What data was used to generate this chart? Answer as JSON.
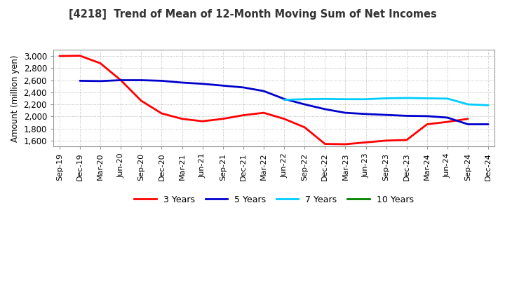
{
  "title": "[4218]  Trend of Mean of 12-Month Moving Sum of Net Incomes",
  "ylabel": "Amount (million yen)",
  "background_color": "#ffffff",
  "plot_bg_color": "#ffffff",
  "grid_color": "#999999",
  "ylim": [
    1500,
    3100
  ],
  "yticks": [
    1600,
    1800,
    2000,
    2200,
    2400,
    2600,
    2800,
    3000
  ],
  "x_labels": [
    "Sep-19",
    "Dec-19",
    "Mar-20",
    "Jun-20",
    "Sep-20",
    "Dec-20",
    "Mar-21",
    "Jun-21",
    "Sep-21",
    "Dec-21",
    "Mar-22",
    "Jun-22",
    "Sep-22",
    "Dec-22",
    "Mar-23",
    "Jun-23",
    "Sep-23",
    "Dec-23",
    "Mar-24",
    "Jun-24",
    "Sep-24",
    "Dec-24"
  ],
  "series": {
    "3 Years": {
      "color": "#ff0000",
      "data": [
        3000,
        3005,
        2880,
        2600,
        2260,
        2050,
        1960,
        1920,
        1960,
        2020,
        2060,
        1960,
        1820,
        1545,
        1540,
        1570,
        1600,
        1610,
        1870,
        1910,
        1960,
        null
      ]
    },
    "5 Years": {
      "color": "#0000cc",
      "data": [
        null,
        2590,
        2585,
        2600,
        2600,
        2590,
        2560,
        2540,
        2510,
        2480,
        2420,
        2290,
        2200,
        2120,
        2060,
        2040,
        2025,
        2010,
        2005,
        1980,
        1870,
        1870
      ]
    },
    "7 Years": {
      "color": "#00ccff",
      "data": [
        null,
        null,
        null,
        null,
        null,
        null,
        null,
        null,
        null,
        null,
        null,
        2275,
        2285,
        2290,
        2285,
        2285,
        2300,
        2305,
        2300,
        2295,
        2200,
        2185
      ]
    },
    "10 Years": {
      "color": "#008000",
      "data": [
        null,
        null,
        null,
        null,
        null,
        null,
        null,
        null,
        null,
        null,
        null,
        null,
        null,
        null,
        null,
        null,
        null,
        null,
        null,
        null,
        null,
        null
      ]
    }
  },
  "legend_labels": [
    "3 Years",
    "5 Years",
    "7 Years",
    "10 Years"
  ],
  "legend_colors": [
    "#ff0000",
    "#0000cc",
    "#00ccff",
    "#008000"
  ]
}
